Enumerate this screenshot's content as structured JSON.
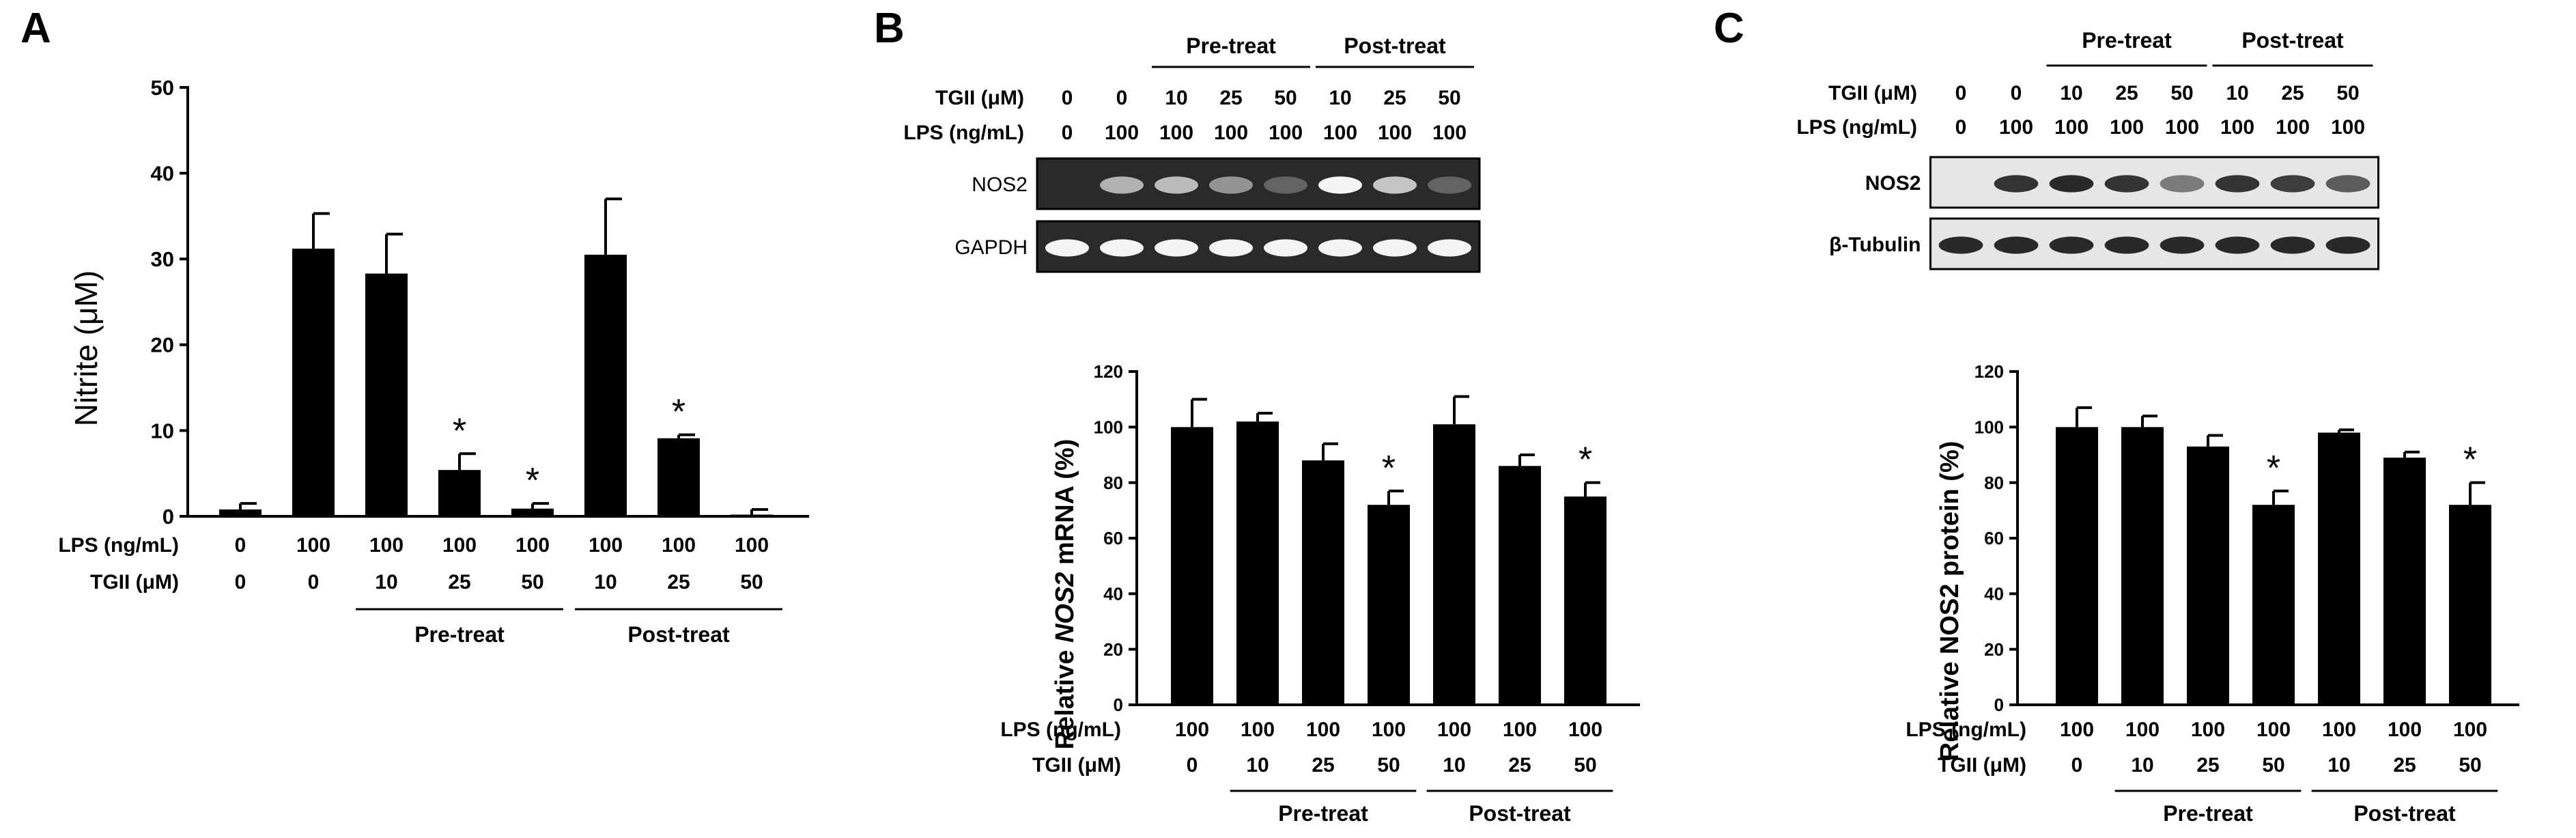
{
  "figure": {
    "panels": [
      "A",
      "B",
      "C"
    ],
    "ylabel_a_main": "Nitrite ",
    "ylabel_a_unit": "(μM)",
    "ylabel_b_pre": "Relative ",
    "ylabel_b_gene": "NOS2",
    "ylabel_b_post": " mRNA (%)",
    "ylabel_c": "Relative NOS2 protein (%)",
    "row_lps": "LPS (ng/mL)",
    "row_tgii": "TGII (μM)",
    "group_pre": "Pre-treat",
    "group_post": "Post-treat",
    "significance_mark": "*",
    "blot_b": {
      "target": "NOS2",
      "control": "GAPDH",
      "bg": "#2a2a2a"
    },
    "blot_c": {
      "target": "NOS2",
      "control": "β-Tubulin",
      "bg": "#e6e6e6"
    },
    "bar_color": "#000000"
  },
  "chart_data": [
    {
      "panel": "A",
      "type": "bar",
      "ylabel": "Nitrite (μM)",
      "ylim": [
        0,
        50
      ],
      "yticks": [
        0,
        10,
        20,
        30,
        40,
        50
      ],
      "lps": [
        "0",
        "100",
        "100",
        "100",
        "100",
        "100",
        "100",
        "100"
      ],
      "tgii": [
        "0",
        "0",
        "10",
        "25",
        "50",
        "10",
        "25",
        "50"
      ],
      "values": [
        0.8,
        31.2,
        28.3,
        5.4,
        0.9,
        30.5,
        9.1,
        0.2
      ],
      "errors": [
        0.7,
        4.1,
        4.6,
        1.9,
        0.6,
        6.5,
        0.4,
        0.6
      ],
      "significant": [
        false,
        false,
        false,
        true,
        true,
        false,
        true,
        false
      ],
      "groups": [
        {
          "label": "Pre-treat",
          "from": 2,
          "to": 4
        },
        {
          "label": "Post-treat",
          "from": 5,
          "to": 7
        }
      ]
    },
    {
      "panel": "B",
      "type": "bar",
      "ylabel": "Relative NOS2 mRNA (%)",
      "ylim": [
        0,
        120
      ],
      "yticks": [
        0,
        20,
        40,
        60,
        80,
        100,
        120
      ],
      "lps": [
        "100",
        "100",
        "100",
        "100",
        "100",
        "100",
        "100"
      ],
      "tgii": [
        "0",
        "10",
        "25",
        "50",
        "10",
        "25",
        "50"
      ],
      "values": [
        100,
        102,
        88,
        72,
        101,
        86,
        75
      ],
      "errors": [
        10,
        3,
        6,
        5,
        10,
        4,
        5
      ],
      "significant": [
        false,
        false,
        false,
        true,
        false,
        false,
        true
      ],
      "groups": [
        {
          "label": "Pre-treat",
          "from": 1,
          "to": 3
        },
        {
          "label": "Post-treat",
          "from": 4,
          "to": 6
        }
      ],
      "blot": {
        "tgii": [
          "0",
          "0",
          "10",
          "25",
          "50",
          "10",
          "25",
          "50"
        ],
        "lps": [
          "0",
          "100",
          "100",
          "100",
          "100",
          "100",
          "100",
          "100"
        ],
        "groups": [
          {
            "label": "Pre-treat",
            "from": 2,
            "to": 4
          },
          {
            "label": "Post-treat",
            "from": 5,
            "to": 7
          }
        ],
        "target_intensity": [
          0.0,
          0.6,
          0.65,
          0.45,
          0.2,
          0.95,
          0.7,
          0.2
        ],
        "control_intensity": [
          0.95,
          0.95,
          0.95,
          0.95,
          0.95,
          0.95,
          0.95,
          0.95
        ]
      }
    },
    {
      "panel": "C",
      "type": "bar",
      "ylabel": "Relative NOS2 protein (%)",
      "ylim": [
        0,
        120
      ],
      "yticks": [
        0,
        20,
        40,
        60,
        80,
        100,
        120
      ],
      "lps": [
        "100",
        "100",
        "100",
        "100",
        "100",
        "100",
        "100"
      ],
      "tgii": [
        "0",
        "10",
        "25",
        "50",
        "10",
        "25",
        "50"
      ],
      "values": [
        100,
        100,
        93,
        72,
        98,
        89,
        72
      ],
      "errors": [
        7,
        4,
        4,
        5,
        1,
        2,
        8
      ],
      "significant": [
        false,
        false,
        false,
        true,
        false,
        false,
        true
      ],
      "groups": [
        {
          "label": "Pre-treat",
          "from": 1,
          "to": 3
        },
        {
          "label": "Post-treat",
          "from": 4,
          "to": 6
        }
      ],
      "blot": {
        "tgii": [
          "0",
          "0",
          "10",
          "25",
          "50",
          "10",
          "25",
          "50"
        ],
        "lps": [
          "0",
          "100",
          "100",
          "100",
          "100",
          "100",
          "100",
          "100"
        ],
        "groups": [
          {
            "label": "Pre-treat",
            "from": 2,
            "to": 4
          },
          {
            "label": "Post-treat",
            "from": 5,
            "to": 7
          }
        ],
        "target_intensity": [
          0.0,
          0.85,
          0.9,
          0.85,
          0.5,
          0.85,
          0.8,
          0.65
        ],
        "control_intensity": [
          0.9,
          0.9,
          0.9,
          0.9,
          0.9,
          0.9,
          0.9,
          0.9
        ]
      }
    }
  ]
}
